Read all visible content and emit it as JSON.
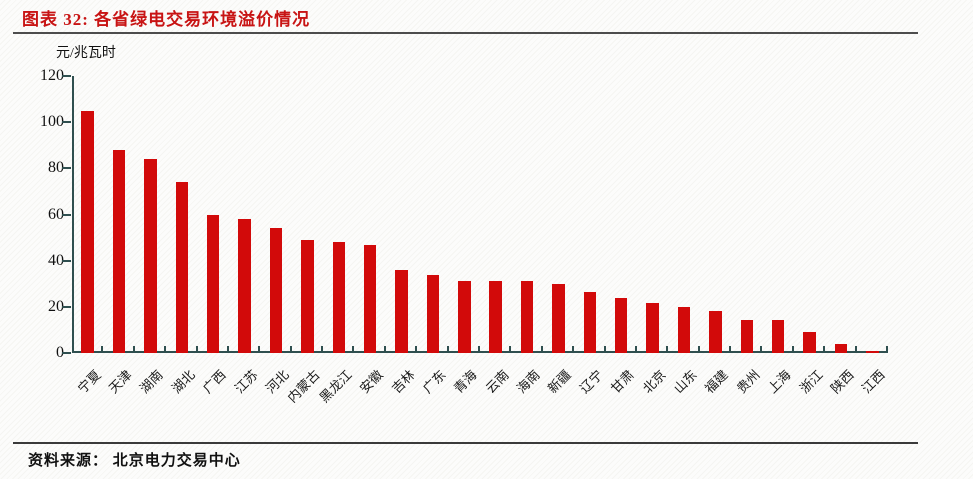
{
  "header": {
    "title": "图表 32: 各省绿电交易环境溢价情况",
    "title_color": "#c81414"
  },
  "footer": {
    "source": "资料来源： 北京电力交易中心"
  },
  "chart_data": {
    "type": "bar",
    "title": "各省绿电交易环境溢价情况",
    "unit": "元/兆瓦时",
    "categories": [
      "宁夏",
      "天津",
      "湖南",
      "湖北",
      "广西",
      "江苏",
      "河北",
      "内蒙古",
      "黑龙江",
      "安徽",
      "吉林",
      "广东",
      "青海",
      "云南",
      "海南",
      "新疆",
      "辽宁",
      "甘肃",
      "北京",
      "山东",
      "福建",
      "贵州",
      "上海",
      "浙江",
      "陕西",
      "江西"
    ],
    "values": [
      105,
      88,
      84,
      74,
      60,
      58,
      54,
      49,
      48,
      47,
      36,
      34,
      31,
      31,
      31,
      30,
      26.5,
      24,
      21.5,
      20,
      18,
      14.5,
      14.5,
      9,
      4,
      1
    ],
    "ylim": [
      0,
      120
    ],
    "yticks": [
      0,
      20,
      40,
      60,
      80,
      100,
      120
    ],
    "grid": false,
    "legend": false,
    "bar_color": "#d20a0a",
    "axis_color": "#2f4f4f"
  }
}
